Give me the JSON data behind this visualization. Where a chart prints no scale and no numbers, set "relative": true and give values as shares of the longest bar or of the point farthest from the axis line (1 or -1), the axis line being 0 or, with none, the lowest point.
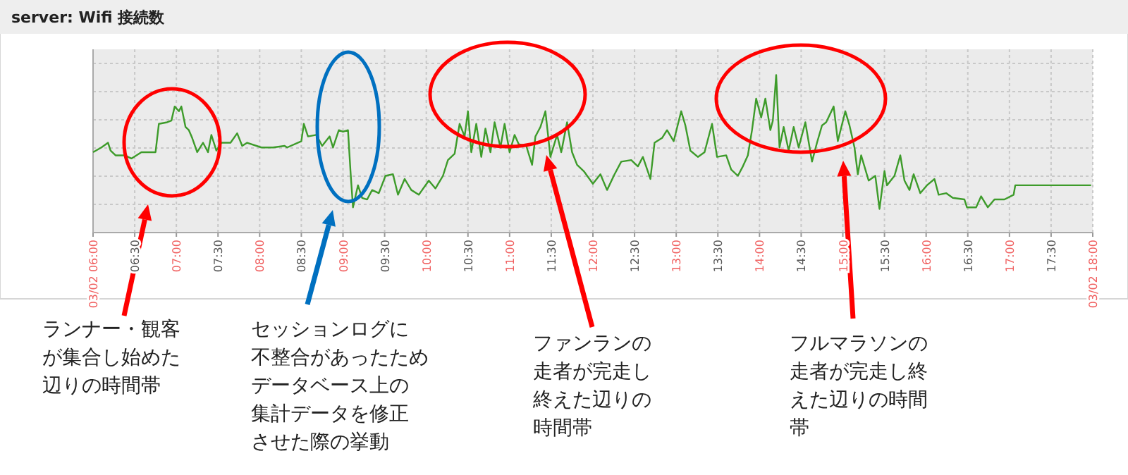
{
  "chart_data": {
    "type": "line",
    "title": "server: Wifi 接続数",
    "relative": true,
    "grid": true,
    "marker": "none",
    "line_style": "solid",
    "xlim": [
      6,
      18
    ],
    "xticks": [
      {
        "value": 6,
        "label": "03/02 06:00"
      },
      {
        "value": 6.5,
        "label": "06:30"
      },
      {
        "value": 7,
        "label": "07:00"
      },
      {
        "value": 7.5,
        "label": "07:30"
      },
      {
        "value": 8,
        "label": "08:00"
      },
      {
        "value": 8.5,
        "label": "08:30"
      },
      {
        "value": 9,
        "label": "09:00"
      },
      {
        "value": 9.5,
        "label": "09:30"
      },
      {
        "value": 10,
        "label": "10:00"
      },
      {
        "value": 10.5,
        "label": "10:30"
      },
      {
        "value": 11,
        "label": "11:00"
      },
      {
        "value": 11.5,
        "label": "11:30"
      },
      {
        "value": 12,
        "label": "12:00"
      },
      {
        "value": 12.5,
        "label": "12:30"
      },
      {
        "value": 13,
        "label": "13:00"
      },
      {
        "value": 13.5,
        "label": "13:30"
      },
      {
        "value": 14,
        "label": "14:00"
      },
      {
        "value": 14.5,
        "label": "14:30"
      },
      {
        "value": 15,
        "label": "15:00"
      },
      {
        "value": 15.5,
        "label": "15:30"
      },
      {
        "value": 16,
        "label": "16:00"
      },
      {
        "value": 16.5,
        "label": "16:30"
      },
      {
        "value": 17,
        "label": "17:00"
      },
      {
        "value": 17.5,
        "label": "17:30"
      },
      {
        "value": 18,
        "label": "03/02 18:00"
      }
    ],
    "series": [
      {
        "color": "#3d9b2a",
        "x": [
          6.0,
          6.1,
          6.18,
          6.21,
          6.27,
          6.38,
          6.46,
          6.58,
          6.75,
          6.79,
          6.89,
          6.94,
          6.98,
          7.03,
          7.06,
          7.11,
          7.15,
          7.19,
          7.25,
          7.32,
          7.38,
          7.42,
          7.48,
          7.54,
          7.65,
          7.73,
          7.79,
          7.85,
          8.02,
          8.16,
          8.3,
          8.33,
          8.5,
          8.53,
          8.58,
          8.68,
          8.75,
          8.84,
          8.88,
          8.95,
          9.0,
          9.06,
          9.09,
          9.12,
          9.18,
          9.23,
          9.29,
          9.35,
          9.43,
          9.51,
          9.6,
          9.66,
          9.74,
          9.82,
          9.91,
          10.03,
          10.11,
          10.2,
          10.26,
          10.34,
          10.4,
          10.46,
          10.5,
          10.54,
          10.6,
          10.66,
          10.71,
          10.77,
          10.82,
          10.89,
          10.94,
          11.0,
          11.06,
          11.11,
          11.2,
          11.27,
          11.31,
          11.37,
          11.43,
          11.49,
          11.57,
          11.62,
          11.69,
          11.75,
          11.81,
          11.89,
          12.0,
          12.09,
          12.17,
          12.26,
          12.34,
          12.46,
          12.54,
          12.6,
          12.69,
          12.74,
          12.83,
          12.89,
          12.97,
          13.06,
          13.11,
          13.17,
          13.26,
          13.34,
          13.43,
          13.49,
          13.6,
          13.66,
          13.74,
          13.8,
          13.86,
          13.91,
          13.96,
          14.02,
          14.07,
          14.13,
          14.16,
          14.2,
          14.24,
          14.29,
          14.35,
          14.41,
          14.47,
          14.55,
          14.63,
          14.69,
          14.75,
          14.8,
          14.89,
          14.94,
          15.03,
          15.08,
          15.14,
          15.18,
          15.22,
          15.31,
          15.39,
          15.44,
          15.5,
          15.53,
          15.62,
          15.69,
          15.74,
          15.8,
          15.85,
          15.93,
          16.01,
          16.1,
          16.15,
          16.24,
          16.32,
          16.46,
          16.49,
          16.6,
          16.66,
          16.74,
          16.82,
          16.94,
          17.05,
          17.07,
          17.98
        ],
        "values": [
          0.51,
          0.54,
          0.57,
          0.52,
          0.49,
          0.49,
          0.47,
          0.51,
          0.51,
          0.69,
          0.7,
          0.71,
          0.8,
          0.77,
          0.8,
          0.67,
          0.65,
          0.6,
          0.51,
          0.57,
          0.51,
          0.62,
          0.52,
          0.57,
          0.57,
          0.63,
          0.55,
          0.57,
          0.54,
          0.54,
          0.55,
          0.54,
          0.58,
          0.69,
          0.61,
          0.62,
          0.55,
          0.61,
          0.54,
          0.65,
          0.64,
          0.65,
          0.39,
          0.16,
          0.3,
          0.22,
          0.21,
          0.27,
          0.25,
          0.36,
          0.37,
          0.24,
          0.34,
          0.27,
          0.24,
          0.33,
          0.28,
          0.36,
          0.46,
          0.5,
          0.69,
          0.61,
          0.77,
          0.51,
          0.69,
          0.48,
          0.66,
          0.51,
          0.7,
          0.54,
          0.69,
          0.51,
          0.62,
          0.56,
          0.55,
          0.43,
          0.61,
          0.67,
          0.77,
          0.48,
          0.62,
          0.51,
          0.7,
          0.51,
          0.43,
          0.39,
          0.31,
          0.37,
          0.27,
          0.37,
          0.45,
          0.46,
          0.42,
          0.48,
          0.34,
          0.57,
          0.6,
          0.65,
          0.58,
          0.77,
          0.68,
          0.52,
          0.48,
          0.51,
          0.69,
          0.48,
          0.49,
          0.4,
          0.36,
          0.42,
          0.49,
          0.65,
          0.85,
          0.73,
          0.85,
          0.65,
          0.71,
          1.0,
          0.54,
          0.67,
          0.52,
          0.67,
          0.54,
          0.7,
          0.45,
          0.57,
          0.68,
          0.7,
          0.8,
          0.58,
          0.77,
          0.68,
          0.54,
          0.37,
          0.49,
          0.33,
          0.36,
          0.15,
          0.39,
          0.3,
          0.36,
          0.49,
          0.33,
          0.27,
          0.37,
          0.25,
          0.3,
          0.34,
          0.24,
          0.25,
          0.22,
          0.21,
          0.16,
          0.16,
          0.23,
          0.16,
          0.21,
          0.21,
          0.24,
          0.3,
          0.3
        ]
      }
    ],
    "annotations": [
      "ランナー・観客が集合し始めた辺りの時間帯",
      "セッションログに不整合があったためデータベース上の集計データを修正させた際の挙動",
      "ファンランの走者が完走し終えた辺りの時間帯",
      "フルマラソンの走者が完走し終えた辺りの時間帯"
    ]
  }
}
